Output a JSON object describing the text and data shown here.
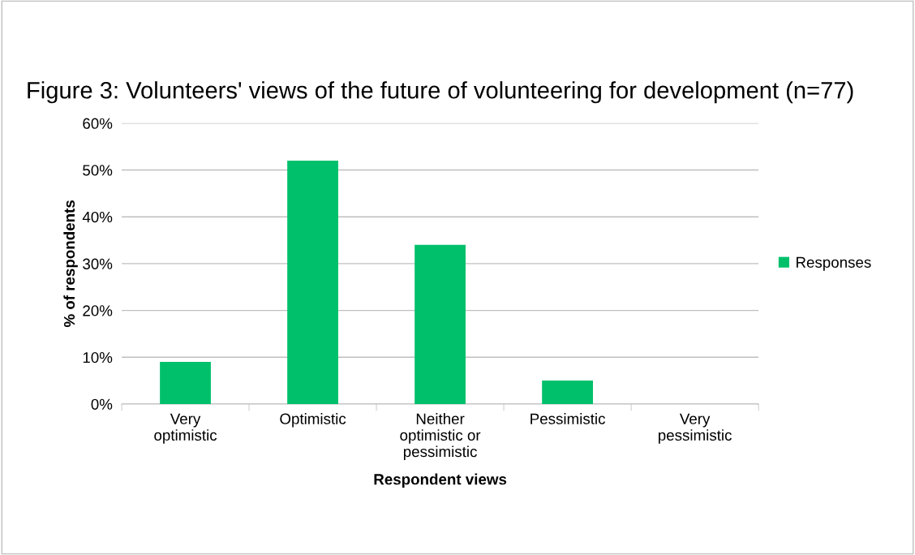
{
  "chart_data": {
    "type": "bar",
    "title": "Figure 3: Volunteers' views of the future of volunteering for development (n=77)",
    "xlabel": "Respondent views",
    "ylabel": "% of respondents",
    "categories": [
      "Very\noptimistic",
      "Optimistic",
      "Neither\noptimistic or\npessimistic",
      "Pessimistic",
      "Very\npessimistic"
    ],
    "series": [
      {
        "name": "Responses",
        "color": "#00c06b",
        "values": [
          9,
          52,
          34,
          5,
          0
        ]
      }
    ],
    "ylim": [
      0,
      60
    ],
    "yticks": [
      {
        "value": 0,
        "label": "0%"
      },
      {
        "value": 10,
        "label": "10%"
      },
      {
        "value": 20,
        "label": "20%"
      },
      {
        "value": 30,
        "label": "30%"
      },
      {
        "value": 40,
        "label": "40%"
      },
      {
        "value": 50,
        "label": "50%"
      },
      {
        "value": 60,
        "label": "60%"
      }
    ],
    "grid": "y",
    "legend": "right"
  }
}
